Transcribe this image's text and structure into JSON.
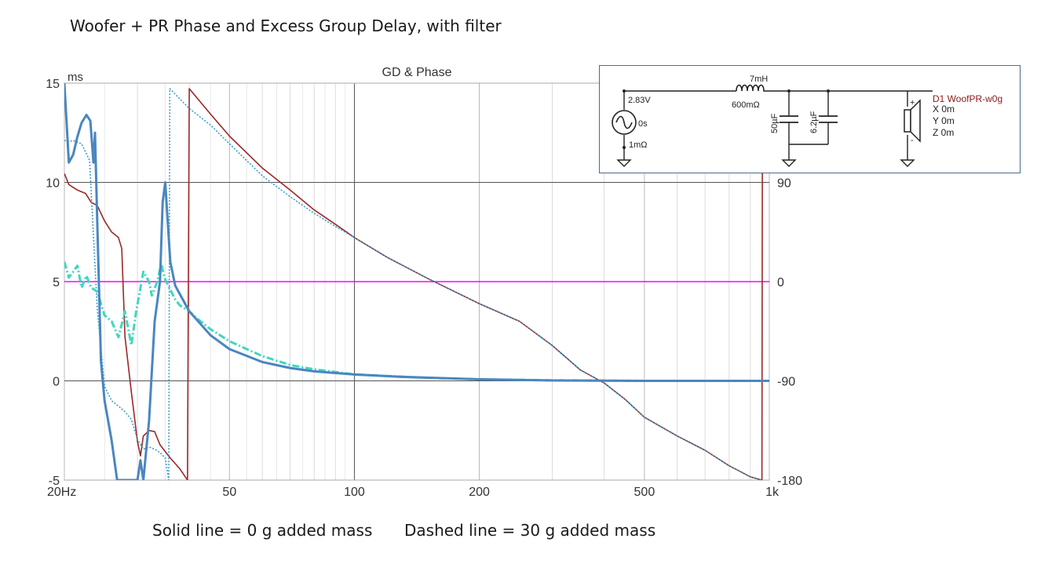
{
  "page_title": "Woofer + PR  Phase and Excess Group Delay, with filter",
  "caption_solid": "Solid line = 0 g added mass",
  "caption_dashed": "Dashed line = 30 g added mass",
  "chart_data": {
    "type": "line",
    "title": "GD & Phase",
    "left_unit": "ms",
    "x_scale": "log",
    "xlim": [
      20,
      1000
    ],
    "ylim_left": [
      -5,
      15
    ],
    "ylim_right": [
      -180,
      180
    ],
    "x_ticks": [
      {
        "value": 20,
        "label": "20Hz"
      },
      {
        "value": 50,
        "label": "50"
      },
      {
        "value": 100,
        "label": "100"
      },
      {
        "value": 200,
        "label": "200"
      },
      {
        "value": 500,
        "label": "500"
      },
      {
        "value": 1000,
        "label": "1k"
      }
    ],
    "y_left_ticks": [
      {
        "value": 15,
        "label": "15"
      },
      {
        "value": 10,
        "label": "10"
      },
      {
        "value": 5,
        "label": "5"
      },
      {
        "value": 0,
        "label": "0"
      },
      {
        "value": -5,
        "label": "-5"
      }
    ],
    "y_right_ticks": [
      {
        "value": 90,
        "label": "90"
      },
      {
        "value": 0,
        "label": "0"
      },
      {
        "value": -90,
        "label": "-90"
      },
      {
        "value": -180,
        "label": "-180"
      }
    ],
    "grid": true,
    "colors": {
      "gd_0g": "#4a86c0",
      "gd_30g": "#3ed8c0",
      "phase_0g": "#9b2828",
      "phase_30g": "#3a9cc8",
      "reference": "#ff00ff"
    },
    "series": [
      {
        "axis": "left",
        "style": "solid",
        "points": [
          [
            20,
            15
          ],
          [
            20.5,
            11
          ],
          [
            21,
            11.4
          ],
          [
            21.5,
            12.3
          ],
          [
            22,
            13
          ],
          [
            22.6,
            13.4
          ],
          [
            23.1,
            13.1
          ],
          [
            23.5,
            11
          ],
          [
            23.7,
            12.5
          ],
          [
            24,
            8
          ],
          [
            24.5,
            1
          ],
          [
            25,
            -1
          ],
          [
            26,
            -3
          ],
          [
            26.8,
            -5
          ],
          [
            30,
            -5
          ],
          [
            30.5,
            -4
          ],
          [
            31,
            -5
          ],
          [
            32,
            -2
          ],
          [
            33,
            3
          ],
          [
            34,
            5
          ],
          [
            34.5,
            9
          ],
          [
            35,
            10
          ],
          [
            35.5,
            8
          ],
          [
            36,
            6
          ],
          [
            37,
            4.8
          ],
          [
            40,
            3.5
          ],
          [
            45,
            2.3
          ],
          [
            50,
            1.6
          ],
          [
            60,
            0.95
          ],
          [
            70,
            0.65
          ],
          [
            80,
            0.48
          ],
          [
            100,
            0.32
          ],
          [
            130,
            0.2
          ],
          [
            200,
            0.08
          ],
          [
            300,
            0.02
          ],
          [
            500,
            0
          ],
          [
            1000,
            0
          ]
        ]
      },
      {
        "axis": "left",
        "style": "dashed",
        "points": [
          [
            20,
            6
          ],
          [
            20.5,
            5.2
          ],
          [
            21,
            5.5
          ],
          [
            21.5,
            5.8
          ],
          [
            22,
            4.7
          ],
          [
            22.6,
            5.3
          ],
          [
            23.2,
            4.7
          ],
          [
            24,
            4.5
          ],
          [
            25,
            3.3
          ],
          [
            26,
            3
          ],
          [
            27,
            2.2
          ],
          [
            28,
            3.5
          ],
          [
            29,
            1.8
          ],
          [
            29.8,
            3.5
          ],
          [
            31,
            5.5
          ],
          [
            32,
            5
          ],
          [
            32.5,
            4.3
          ],
          [
            33.5,
            5
          ],
          [
            34.2,
            5.9
          ],
          [
            35,
            5.1
          ],
          [
            36,
            4.6
          ],
          [
            37,
            4.1
          ],
          [
            38,
            3.8
          ],
          [
            40,
            3.5
          ],
          [
            42,
            3.1
          ],
          [
            45,
            2.6
          ],
          [
            50,
            2
          ],
          [
            55,
            1.6
          ],
          [
            60,
            1.25
          ],
          [
            70,
            0.8
          ],
          [
            80,
            0.58
          ],
          [
            100,
            0.33
          ],
          [
            150,
            0.15
          ],
          [
            200,
            0.08
          ],
          [
            300,
            0.03
          ],
          [
            500,
            0
          ],
          [
            1000,
            0
          ]
        ]
      },
      {
        "axis": "right",
        "style": "solid",
        "points": [
          [
            20,
            98
          ],
          [
            20.5,
            88
          ],
          [
            21.5,
            83
          ],
          [
            22.5,
            80
          ],
          [
            23.2,
            72
          ],
          [
            24,
            69
          ],
          [
            25,
            55
          ],
          [
            26,
            45
          ],
          [
            27,
            40
          ],
          [
            27.5,
            30
          ],
          [
            28,
            -50
          ],
          [
            29,
            -100
          ],
          [
            30,
            -145
          ],
          [
            30.5,
            -158
          ],
          [
            31,
            -140
          ],
          [
            32,
            -135
          ],
          [
            33,
            -136
          ],
          [
            34,
            -148
          ],
          [
            36,
            -160
          ],
          [
            38,
            -170
          ],
          [
            39.6,
            -180
          ],
          [
            40,
            175
          ],
          [
            45,
            152
          ],
          [
            50,
            132
          ],
          [
            60,
            103
          ],
          [
            70,
            83
          ],
          [
            80,
            65
          ],
          [
            90,
            52
          ],
          [
            100,
            40
          ],
          [
            120,
            22
          ],
          [
            150,
            3
          ],
          [
            200,
            -20
          ],
          [
            250,
            -36
          ],
          [
            300,
            -58
          ],
          [
            350,
            -80
          ],
          [
            400,
            -92
          ],
          [
            450,
            -107
          ],
          [
            500,
            -123
          ],
          [
            600,
            -140
          ],
          [
            700,
            -153
          ],
          [
            800,
            -167
          ],
          [
            900,
            -177
          ],
          [
            960,
            -180
          ],
          [
            962,
            100
          ]
        ]
      },
      {
        "axis": "right",
        "style": "dashed",
        "points": [
          [
            20,
            128
          ],
          [
            20.5,
            127
          ],
          [
            21,
            128
          ],
          [
            22,
            125
          ],
          [
            23,
            110
          ],
          [
            24,
            -25
          ],
          [
            25,
            -95
          ],
          [
            26,
            -108
          ],
          [
            27,
            -113
          ],
          [
            28,
            -118
          ],
          [
            29,
            -125
          ],
          [
            30,
            -143
          ],
          [
            31,
            -152
          ],
          [
            32,
            -150
          ],
          [
            33,
            -152
          ],
          [
            34,
            -155
          ],
          [
            35,
            -160
          ],
          [
            35.7,
            -180
          ],
          [
            35.9,
            175
          ],
          [
            40,
            157
          ],
          [
            45,
            142
          ],
          [
            50,
            125
          ],
          [
            60,
            96
          ],
          [
            70,
            77
          ],
          [
            80,
            62
          ],
          [
            90,
            50
          ],
          [
            100,
            40
          ],
          [
            120,
            22
          ],
          [
            150,
            3
          ],
          [
            200,
            -20
          ],
          [
            250,
            -36
          ],
          [
            300,
            -58
          ],
          [
            350,
            -80
          ],
          [
            400,
            -92
          ],
          [
            450,
            -107
          ],
          [
            500,
            -123
          ],
          [
            600,
            -140
          ],
          [
            700,
            -153
          ],
          [
            800,
            -167
          ],
          [
            900,
            -177
          ],
          [
            960,
            -180
          ]
        ]
      },
      {
        "axis": "right",
        "style": "solid",
        "points": [
          [
            20,
            0
          ],
          [
            1000,
            0
          ]
        ]
      }
    ]
  },
  "schematic": {
    "source_voltage": "2.83V",
    "source_delay": "0s",
    "source_resistance": "1mΩ",
    "inductor_value": "7mH",
    "inductor_resistance": "600mΩ",
    "cap1_value": "50µF",
    "cap2_value": "6.2µF",
    "driver_name": "D1 WoofPR-w0g",
    "driver_x": "X 0m",
    "driver_y": "Y 0m",
    "driver_z": "Z 0m",
    "plus_sign": "+",
    "minus_sign": "-"
  }
}
